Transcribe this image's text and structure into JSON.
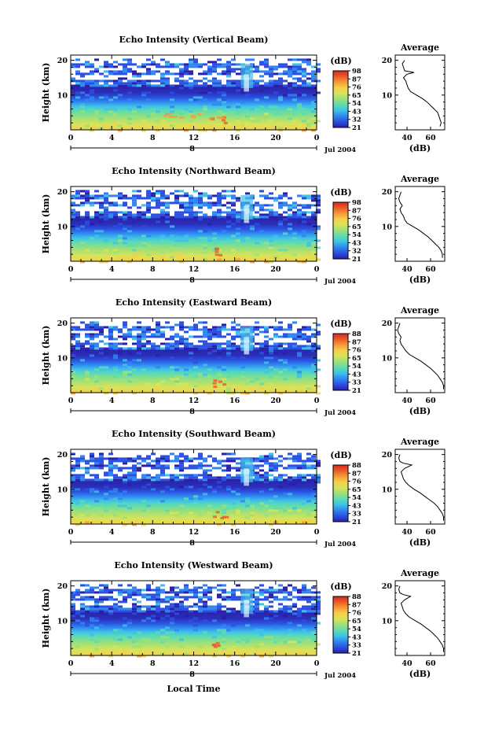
{
  "colorscale": [
    "#2a1fa8",
    "#2b4fe0",
    "#2f86f0",
    "#3fc1e8",
    "#5ddcb0",
    "#9be07a",
    "#d8e35a",
    "#f5d04a",
    "#f79a35",
    "#ec5a28",
    "#d52a1e"
  ],
  "panels": [
    {
      "title": "Echo Intensity (Vertical Beam)",
      "profile": [
        [
          68,
          1
        ],
        [
          69,
          2
        ],
        [
          68,
          3
        ],
        [
          67,
          4
        ],
        [
          66,
          5
        ],
        [
          63,
          6
        ],
        [
          60,
          7
        ],
        [
          57,
          8
        ],
        [
          53,
          9
        ],
        [
          48,
          10
        ],
        [
          43,
          11
        ],
        [
          41,
          12
        ],
        [
          40,
          13
        ],
        [
          39,
          14
        ],
        [
          37,
          15
        ],
        [
          40,
          16
        ],
        [
          46,
          16.5
        ],
        [
          38,
          17
        ],
        [
          37,
          18
        ],
        [
          36,
          19
        ],
        [
          38,
          20
        ]
      ]
    },
    {
      "title": "Echo Intensity (Northward Beam)",
      "profile": [
        [
          70,
          1
        ],
        [
          70,
          2
        ],
        [
          69,
          3
        ],
        [
          67,
          4
        ],
        [
          64,
          5
        ],
        [
          61,
          6
        ],
        [
          58,
          7
        ],
        [
          54,
          8
        ],
        [
          50,
          9
        ],
        [
          45,
          10
        ],
        [
          40,
          11
        ],
        [
          38,
          12
        ],
        [
          37,
          13
        ],
        [
          35,
          14
        ],
        [
          34,
          15
        ],
        [
          36,
          16
        ],
        [
          34,
          17
        ],
        [
          33,
          18
        ],
        [
          34,
          19
        ],
        [
          35,
          20
        ]
      ]
    },
    {
      "title": "Echo Intensity (Eastward Beam)",
      "profile": [
        [
          71,
          1
        ],
        [
          71,
          2
        ],
        [
          70,
          3
        ],
        [
          68,
          4
        ],
        [
          66,
          5
        ],
        [
          63,
          6
        ],
        [
          60,
          7
        ],
        [
          56,
          8
        ],
        [
          52,
          9
        ],
        [
          47,
          10
        ],
        [
          42,
          11
        ],
        [
          39,
          12
        ],
        [
          37,
          13
        ],
        [
          35,
          14
        ],
        [
          34,
          15
        ],
        [
          35,
          16
        ],
        [
          33,
          17
        ],
        [
          32,
          18
        ],
        [
          33,
          19
        ],
        [
          34,
          20
        ]
      ]
    },
    {
      "title": "Echo Intensity (Southward Beam)",
      "profile": [
        [
          71,
          1
        ],
        [
          71,
          2
        ],
        [
          70,
          3
        ],
        [
          68,
          4
        ],
        [
          66,
          5
        ],
        [
          63,
          6
        ],
        [
          59,
          7
        ],
        [
          55,
          8
        ],
        [
          51,
          9
        ],
        [
          46,
          10
        ],
        [
          42,
          11
        ],
        [
          39,
          12
        ],
        [
          37,
          13
        ],
        [
          36,
          14
        ],
        [
          35,
          15
        ],
        [
          38,
          16
        ],
        [
          44,
          17
        ],
        [
          37,
          17.5
        ],
        [
          34,
          18
        ],
        [
          33,
          19
        ],
        [
          34,
          20
        ]
      ]
    },
    {
      "title": "Echo Intensity (Westward Beam)",
      "profile": [
        [
          71,
          1
        ],
        [
          71,
          2
        ],
        [
          70,
          3
        ],
        [
          68,
          4
        ],
        [
          66,
          5
        ],
        [
          63,
          6
        ],
        [
          60,
          7
        ],
        [
          56,
          8
        ],
        [
          52,
          9
        ],
        [
          47,
          10
        ],
        [
          42,
          11
        ],
        [
          39,
          12
        ],
        [
          37,
          13
        ],
        [
          36,
          14
        ],
        [
          35,
          15
        ],
        [
          38,
          16
        ],
        [
          43,
          17
        ],
        [
          37,
          17.5
        ],
        [
          34,
          18
        ],
        [
          33,
          19
        ],
        [
          34,
          20
        ]
      ]
    }
  ],
  "chart_data": {
    "type": "heatmap",
    "x_ticks": [
      "0",
      "4",
      "8",
      "12",
      "16",
      "20",
      "0"
    ],
    "y_ticks": [
      "10",
      "20"
    ],
    "ylabel": "Height (km)",
    "xlabel": "Local Time",
    "date_label": "8",
    "month_year": "Jul 2004",
    "colorbar_unit": "(dB)",
    "colorbar_ticks": [
      [
        "98",
        "87",
        "76",
        "65",
        "54",
        "43",
        "32",
        "21"
      ],
      [
        "98",
        "87",
        "76",
        "65",
        "54",
        "43",
        "32",
        "21"
      ],
      [
        "88",
        "87",
        "76",
        "65",
        "54",
        "43",
        "33",
        "21"
      ],
      [
        "88",
        "87",
        "76",
        "65",
        "54",
        "43",
        "33",
        "21"
      ],
      [
        "88",
        "87",
        "76",
        "65",
        "54",
        "43",
        "33",
        "21"
      ]
    ],
    "profile_title": "Average",
    "profile_xticks": [
      "40",
      "60"
    ],
    "profile_yticks": [
      "10",
      "20"
    ],
    "profile_xunit": "(dB)"
  }
}
